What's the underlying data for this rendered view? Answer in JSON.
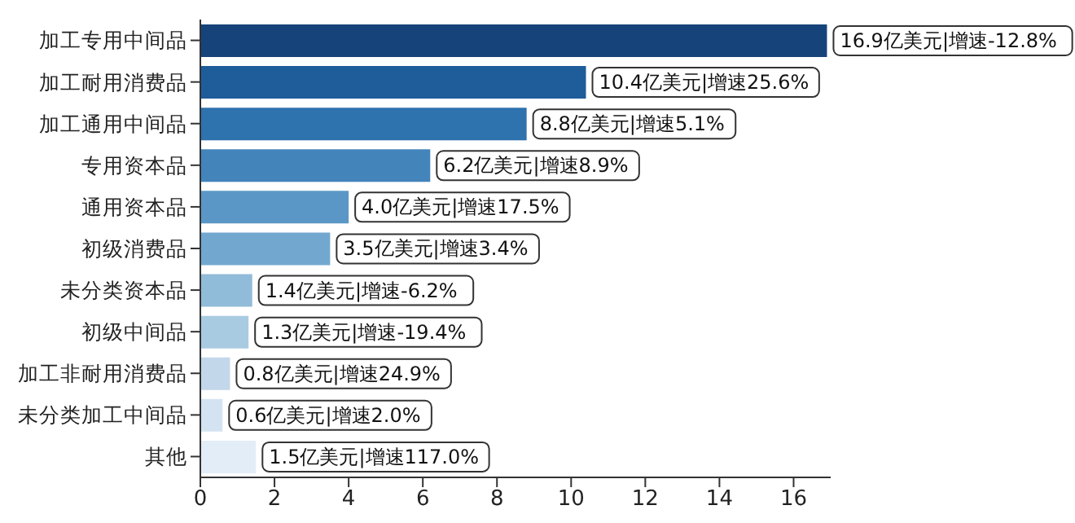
{
  "chart_data": {
    "type": "bar",
    "orientation": "horizontal",
    "categories": [
      "加工专用中间品",
      "加工耐用消费品",
      "加工通用中间品",
      "专用资本品",
      "通用资本品",
      "初级消费品",
      "未分类资本品",
      "初级中间品",
      "加工非耐用消费品",
      "未分类加工中间品",
      "其他"
    ],
    "values": [
      16.9,
      10.4,
      8.8,
      6.2,
      4.0,
      3.5,
      1.4,
      1.3,
      0.8,
      0.6,
      1.5
    ],
    "value_labels": [
      "16.9亿美元|增速-12.8%",
      "10.4亿美元|增速25.6%",
      "8.8亿美元|增速5.1%",
      "6.2亿美元|增速8.9%",
      "4.0亿美元|增速17.5%",
      "3.5亿美元|增速3.4%",
      "1.4亿美元|增速-6.2%",
      "1.3亿美元|增速-19.4%",
      "0.8亿美元|增速24.9%",
      "0.6亿美元|增速2.0%",
      "1.5亿美元|增速117.0%"
    ],
    "colors": [
      "#16437a",
      "#1f5c9a",
      "#2e72ae",
      "#4384bb",
      "#5b97c6",
      "#72a8d0",
      "#91bcd9",
      "#a9cbe2",
      "#c3d7ea",
      "#d4e3f1",
      "#e3edf7"
    ],
    "xlim": [
      0,
      17
    ],
    "xticks": [
      0,
      2,
      4,
      6,
      8,
      10,
      12,
      14,
      16
    ]
  }
}
